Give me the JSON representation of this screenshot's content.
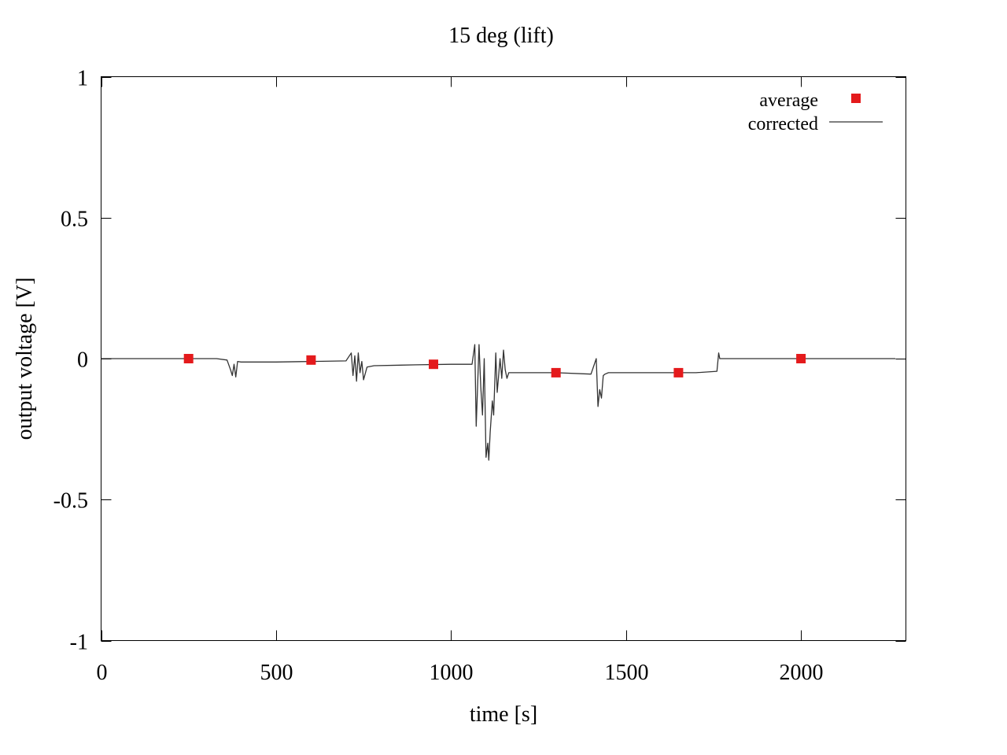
{
  "chart_data": {
    "type": "line",
    "title": "15 deg (lift)",
    "xlabel": "time [s]",
    "ylabel": "output voltage [V]",
    "xlim": [
      0,
      2300
    ],
    "ylim": [
      -1,
      1
    ],
    "x_ticks": [
      0,
      500,
      1000,
      1500,
      2000
    ],
    "y_ticks": [
      1,
      0.5,
      0,
      -0.5,
      -1
    ],
    "x_tick_labels": [
      "0",
      "500",
      "1000",
      "1500",
      "2000"
    ],
    "y_tick_labels": [
      "1",
      "0.5",
      "0",
      "-0.5",
      "-1"
    ],
    "grid": false,
    "legend_position": "top-right",
    "series": [
      {
        "name": "average",
        "style": "points",
        "marker": "square",
        "color": "#e41a1c",
        "x": [
          250,
          600,
          950,
          1300,
          1650,
          2000
        ],
        "y": [
          0.0,
          -0.005,
          -0.02,
          -0.05,
          -0.05,
          0.0
        ]
      },
      {
        "name": "corrected",
        "style": "line",
        "color": "#333333",
        "x": [
          0,
          100,
          200,
          330,
          360,
          370,
          375,
          380,
          385,
          390,
          400,
          500,
          600,
          700,
          715,
          720,
          725,
          730,
          735,
          740,
          745,
          750,
          760,
          780,
          900,
          1000,
          1060,
          1068,
          1072,
          1080,
          1085,
          1090,
          1095,
          1100,
          1105,
          1108,
          1112,
          1118,
          1122,
          1128,
          1132,
          1140,
          1145,
          1150,
          1155,
          1160,
          1165,
          1200,
          1300,
          1400,
          1415,
          1418,
          1420,
          1425,
          1430,
          1435,
          1440,
          1450,
          1500,
          1600,
          1700,
          1760,
          1765,
          1768,
          1772,
          1800,
          1900,
          2000,
          2100,
          2200,
          2270
        ],
        "y": [
          0.0,
          0.0,
          0.0,
          0.0,
          -0.005,
          -0.04,
          -0.06,
          -0.02,
          -0.065,
          -0.01,
          -0.012,
          -0.012,
          -0.01,
          -0.008,
          0.02,
          -0.06,
          0.01,
          -0.08,
          0.02,
          -0.05,
          -0.01,
          -0.075,
          -0.03,
          -0.025,
          -0.022,
          -0.02,
          -0.02,
          0.05,
          -0.24,
          0.05,
          -0.1,
          -0.2,
          0.0,
          -0.35,
          -0.3,
          -0.36,
          -0.26,
          -0.15,
          -0.2,
          0.02,
          -0.12,
          0.0,
          -0.07,
          0.03,
          -0.04,
          -0.07,
          -0.05,
          -0.05,
          -0.05,
          -0.055,
          0.0,
          -0.1,
          -0.17,
          -0.11,
          -0.14,
          -0.06,
          -0.055,
          -0.05,
          -0.05,
          -0.05,
          -0.05,
          -0.045,
          0.02,
          0.0,
          0.0,
          0.0,
          0.0,
          0.0,
          0.0,
          0.0,
          0.0
        ]
      }
    ]
  }
}
